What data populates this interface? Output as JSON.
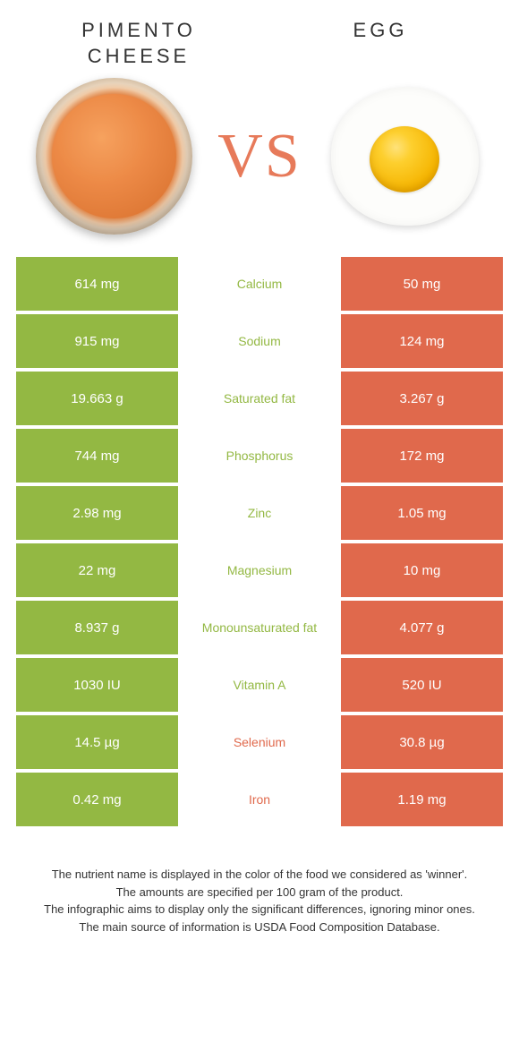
{
  "colors": {
    "left_bg": "#93b843",
    "right_bg": "#e0694c",
    "mid_left_text": "#93b843",
    "mid_right_text": "#e0694c",
    "vs": "#e77a5a"
  },
  "header": {
    "left_title_l1": "PIMENTO",
    "left_title_l2": "CHEESE",
    "right_title": "EGG",
    "vs": "VS"
  },
  "rows": [
    {
      "left": "614 mg",
      "mid": "Calcium",
      "right": "50 mg",
      "winner": "left"
    },
    {
      "left": "915 mg",
      "mid": "Sodium",
      "right": "124 mg",
      "winner": "left"
    },
    {
      "left": "19.663 g",
      "mid": "Saturated fat",
      "right": "3.267 g",
      "winner": "left"
    },
    {
      "left": "744 mg",
      "mid": "Phosphorus",
      "right": "172 mg",
      "winner": "left"
    },
    {
      "left": "2.98 mg",
      "mid": "Zinc",
      "right": "1.05 mg",
      "winner": "left"
    },
    {
      "left": "22 mg",
      "mid": "Magnesium",
      "right": "10 mg",
      "winner": "left"
    },
    {
      "left": "8.937 g",
      "mid": "Monounsaturated fat",
      "right": "4.077 g",
      "winner": "left"
    },
    {
      "left": "1030 IU",
      "mid": "Vitamin A",
      "right": "520 IU",
      "winner": "left"
    },
    {
      "left": "14.5 µg",
      "mid": "Selenium",
      "right": "30.8 µg",
      "winner": "right"
    },
    {
      "left": "0.42 mg",
      "mid": "Iron",
      "right": "1.19 mg",
      "winner": "right"
    }
  ],
  "footnotes": [
    "The nutrient name is displayed in the color of the food we considered as 'winner'.",
    "The amounts are specified per 100 gram of the product.",
    "The infographic aims to display only the significant differences, ignoring minor ones.",
    "The main source of information is USDA Food Composition Database."
  ]
}
